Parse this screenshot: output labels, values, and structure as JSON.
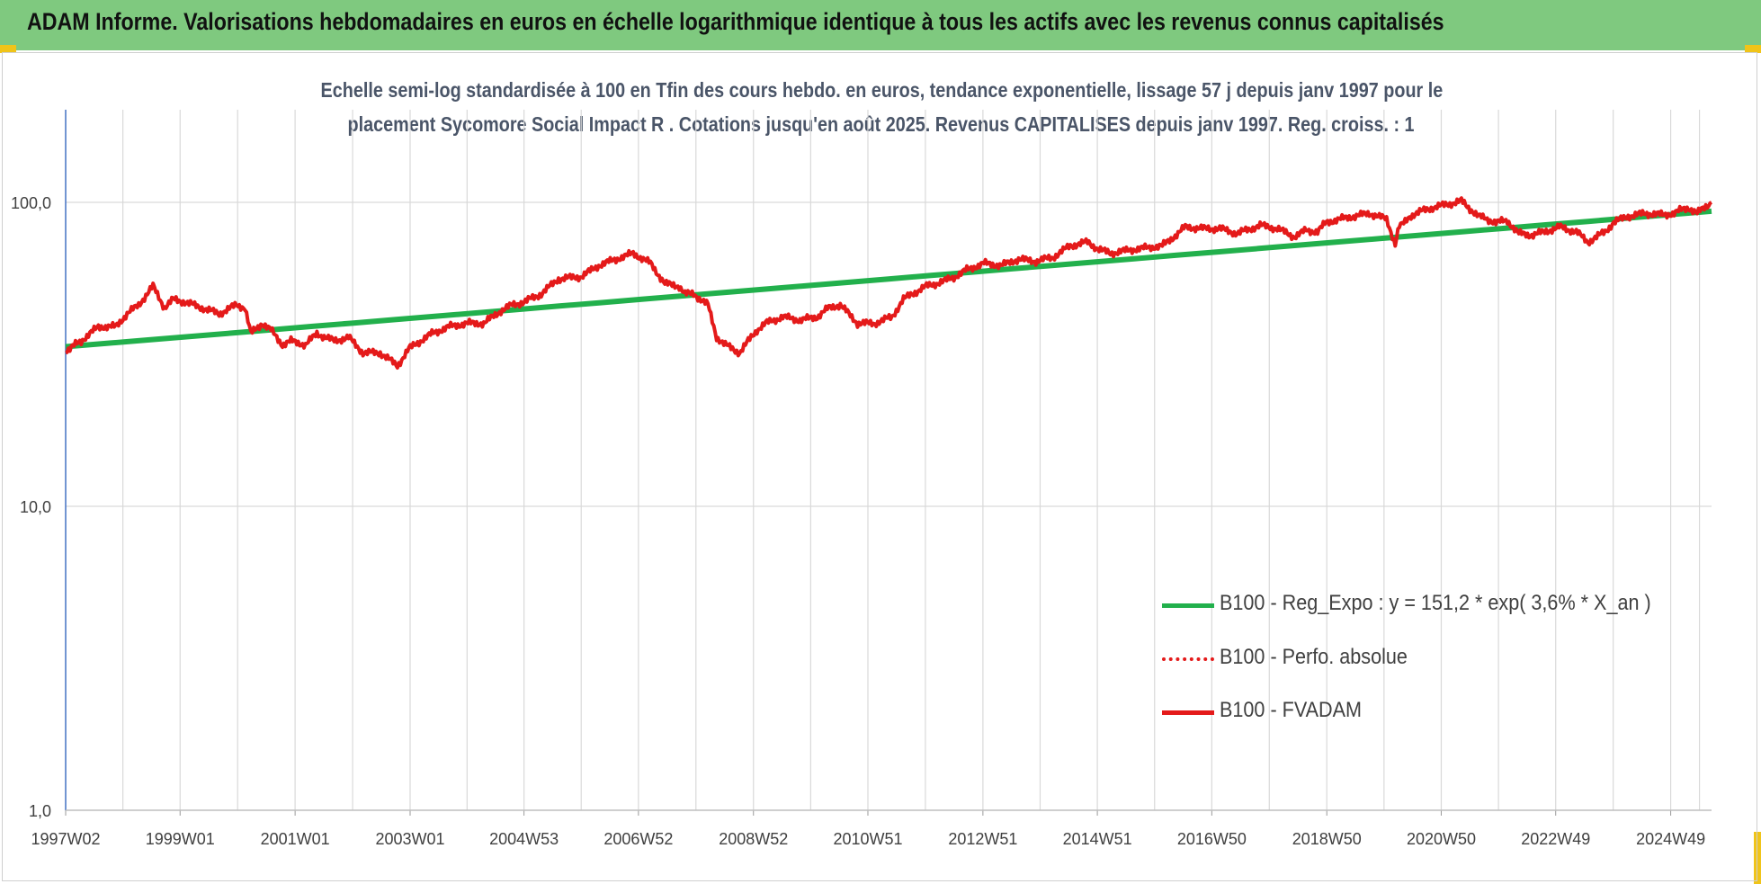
{
  "banner": {
    "title": "ADAM Informe. Valorisations hebdomadaires en euros en échelle logarithmique identique à tous les actifs avec les revenus connus capitalisés"
  },
  "chart_data": {
    "type": "line",
    "title_line1": "Echelle semi-log standardisée à 100 en Tfin des cours hebdo. en euros, tendance exponentielle, lissage 57 j depuis janv 1997 pour le",
    "title_line2": "placement Sycomore Social Impact R . Cotations jusqu'en août 2025. Revenus CAPITALISES depuis janv 1997. Reg. croiss. : 1",
    "y_scale": "log",
    "ylim": [
      1,
      200
    ],
    "y_ticks": [
      {
        "value": 1,
        "label": "1,0"
      },
      {
        "value": 10,
        "label": "10,0"
      },
      {
        "value": 100,
        "label": "100,0"
      }
    ],
    "x_range": [
      1997.03,
      2025.65
    ],
    "x_tick_labels": [
      {
        "label": "1997W02",
        "x": 1997.03
      },
      {
        "label": "1999W01",
        "x": 1999.02
      },
      {
        "label": "2001W01",
        "x": 2001.02
      },
      {
        "label": "2003W01",
        "x": 2003.02
      },
      {
        "label": "2004W53",
        "x": 2005.0
      },
      {
        "label": "2006W52",
        "x": 2006.99
      },
      {
        "label": "2008W52",
        "x": 2008.99
      },
      {
        "label": "2010W51",
        "x": 2010.98
      },
      {
        "label": "2012W51",
        "x": 2012.98
      },
      {
        "label": "2014W51",
        "x": 2014.97
      },
      {
        "label": "2016W50",
        "x": 2016.96
      },
      {
        "label": "2018W50",
        "x": 2018.96
      },
      {
        "label": "2020W50",
        "x": 2020.95
      },
      {
        "label": "2022W49",
        "x": 2022.94
      },
      {
        "label": "2024W49",
        "x": 2024.94
      }
    ],
    "grid": true,
    "legend_position": "bottom-right",
    "series": [
      {
        "name": "B100 - Reg_Expo : y = 151,2 * exp( 3,6% *  X_an )",
        "color": "#22b04c",
        "style": "solid",
        "x": [
          1997.03,
          2025.65
        ],
        "y": [
          33.5,
          93.5
        ]
      },
      {
        "name": "B100 - Perfo. absolue",
        "color": "#e41a1a",
        "style": "dotted",
        "x": [],
        "y": []
      },
      {
        "name": "B100 - FVADAM",
        "color": "#e41a1a",
        "style": "solid",
        "x": [
          1997.03,
          1997.3,
          1997.6,
          1997.9,
          1998.1,
          1998.3,
          1998.55,
          1998.75,
          1998.9,
          1999.1,
          1999.4,
          1999.7,
          2000.0,
          2000.15,
          2000.25,
          2000.45,
          2000.6,
          2000.8,
          2000.95,
          2001.2,
          2001.4,
          2001.7,
          2001.95,
          2002.2,
          2002.5,
          2002.8,
          2003.0,
          2003.2,
          2003.4,
          2003.7,
          2004.0,
          2004.3,
          2004.6,
          2004.8,
          2005.0,
          2005.3,
          2005.6,
          2006.0,
          2006.3,
          2006.6,
          2006.9,
          2007.2,
          2007.45,
          2007.7,
          2007.8,
          2007.95,
          2008.2,
          2008.35,
          2008.5,
          2008.75,
          2008.9,
          2009.05,
          2009.2,
          2009.5,
          2009.8,
          2010.1,
          2010.3,
          2010.5,
          2010.8,
          2011.1,
          2011.4,
          2011.6,
          2011.75,
          2012.0,
          2012.3,
          2012.5,
          2012.7,
          2013.0,
          2013.3,
          2013.6,
          2013.9,
          2014.2,
          2014.5,
          2014.8,
          2015.0,
          2015.2,
          2015.4,
          2015.6,
          2015.85,
          2016.1,
          2016.3,
          2016.5,
          2016.8,
          2017.1,
          2017.4,
          2017.8,
          2018.1,
          2018.4,
          2018.6,
          2018.8,
          2018.95,
          2019.3,
          2019.7,
          2020.0,
          2020.15,
          2020.22,
          2020.4,
          2020.7,
          2021.0,
          2021.3,
          2021.6,
          2021.9,
          2022.1,
          2022.3,
          2022.5,
          2022.75,
          2023.0,
          2023.3,
          2023.5,
          2023.8,
          2023.95,
          2024.2,
          2024.5,
          2024.8,
          2025.0,
          2025.15,
          2025.25,
          2025.4,
          2025.55,
          2025.65
        ],
        "y": [
          32.5,
          35,
          39,
          39,
          43,
          46,
          53,
          45,
          48,
          47,
          45,
          43,
          46,
          45,
          37,
          40,
          38,
          34,
          35,
          34,
          37,
          35,
          36,
          32,
          32,
          29,
          33,
          35,
          37,
          39,
          40,
          40,
          44,
          46,
          47,
          50,
          56,
          57,
          62,
          65,
          68,
          63,
          54,
          53,
          50,
          50,
          46,
          36,
          34,
          32,
          35,
          38,
          40,
          42,
          41,
          42,
          45,
          46,
          40,
          40,
          42,
          48,
          50,
          53,
          55,
          57,
          60,
          63,
          62,
          65,
          64,
          66,
          72,
          74,
          70,
          68,
          69,
          70,
          71,
          72,
          77,
          83,
          82,
          82,
          79,
          84,
          82,
          77,
          81,
          80,
          86,
          89,
          92,
          88,
          73,
          83,
          90,
          95,
          98,
          101,
          90,
          86,
          87,
          79,
          78,
          80,
          83,
          80,
          74,
          80,
          86,
          90,
          92,
          91,
          92,
          95,
          96,
          92,
          97,
          100
        ]
      }
    ]
  }
}
